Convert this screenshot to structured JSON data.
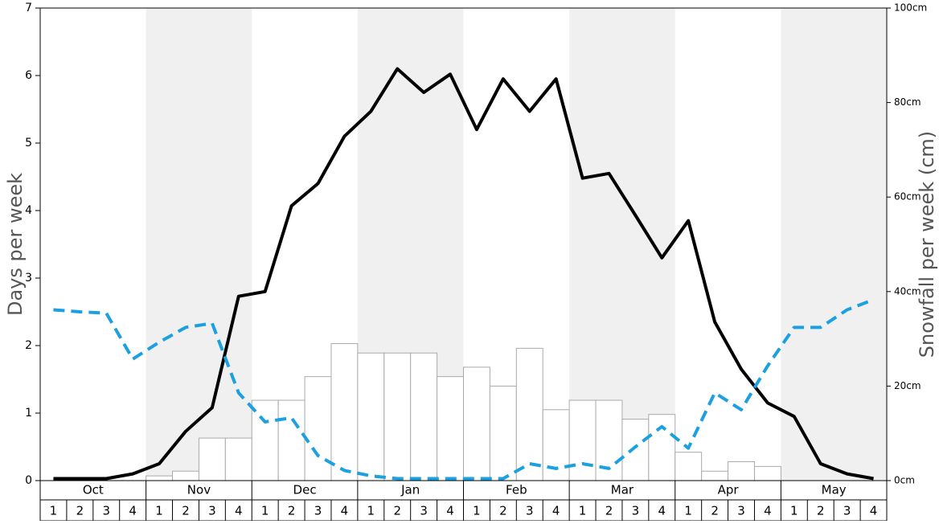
{
  "chart_data": {
    "type": "bar-line",
    "y_label": "Days per week",
    "y2_label": "Snowfall per week (cm)",
    "months": [
      "Oct",
      "Nov",
      "Dec",
      "Jan",
      "Feb",
      "Mar",
      "Apr",
      "May"
    ],
    "weeks": [
      "1",
      "2",
      "3",
      "4"
    ],
    "ylim": [
      0,
      7
    ],
    "yticks": [
      0,
      1,
      2,
      3,
      4,
      5,
      6,
      7
    ],
    "y2lim": [
      0,
      100
    ],
    "y2ticks": [
      {
        "value": 0,
        "label": "0cm"
      },
      {
        "value": 20,
        "label": "20cm"
      },
      {
        "value": 40,
        "label": "40cm"
      },
      {
        "value": 60,
        "label": "60cm"
      },
      {
        "value": 80,
        "label": "80cm"
      },
      {
        "value": 100,
        "label": "100cm"
      }
    ],
    "series": [
      {
        "type": "bar",
        "axis": "y2",
        "color": "#ffffff",
        "values": [
          0,
          0,
          0,
          0,
          1,
          2,
          9,
          9,
          17,
          17,
          22,
          29,
          27,
          27,
          27,
          22,
          24,
          20,
          28,
          15,
          17,
          17,
          13,
          14,
          6,
          2,
          4,
          3,
          0,
          0,
          0,
          0
        ]
      },
      {
        "type": "line",
        "color": "#000000",
        "dash": false,
        "values": [
          0.03,
          0.03,
          0.03,
          0.1,
          0.25,
          0.73,
          1.08,
          2.73,
          2.8,
          4.07,
          4.4,
          5.1,
          5.47,
          6.1,
          5.75,
          6.02,
          5.2,
          5.95,
          5.47,
          5.95,
          4.48,
          4.55,
          3.93,
          3.3,
          3.85,
          2.35,
          1.65,
          1.15,
          0.95,
          0.25,
          0.1,
          0.03
        ]
      },
      {
        "type": "line",
        "color": "#1ca0e0",
        "dash": true,
        "values": [
          2.53,
          2.5,
          2.48,
          1.8,
          2.05,
          2.27,
          2.33,
          1.3,
          0.87,
          0.93,
          0.37,
          0.15,
          0.07,
          0.03,
          0.03,
          0.03,
          0.03,
          0.03,
          0.25,
          0.18,
          0.25,
          0.18,
          0.5,
          0.8,
          0.48,
          1.3,
          1.05,
          1.7,
          2.27,
          2.27,
          2.53,
          2.68
        ]
      }
    ]
  }
}
